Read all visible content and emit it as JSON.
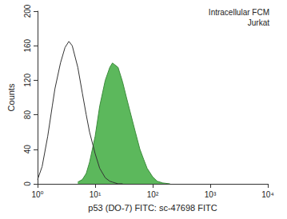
{
  "chart_data": {
    "type": "histogram_overlay",
    "annotations": [
      "Intracellular FCM",
      "Jurkat"
    ],
    "x_label": "p53 (DO-7) FITC: sc-47698 FITC",
    "y_label": "Counts",
    "log": "x",
    "grid": false,
    "x": [
      1,
      1.2,
      1.5,
      1.8,
      2,
      2.5,
      3,
      3.5,
      4,
      5,
      6,
      7,
      8,
      10,
      12,
      15,
      18,
      20,
      25,
      30,
      35,
      40,
      50,
      60,
      70,
      80,
      100,
      120,
      150,
      200
    ],
    "series": [
      {
        "color": "#333333",
        "type": "line",
        "line_style": "solid",
        "values": [
          5,
          20,
          55,
          90,
          110,
          140,
          158,
          165,
          160,
          135,
          105,
          80,
          60,
          35,
          18,
          7,
          3,
          2,
          0,
          0,
          null,
          null,
          null,
          null,
          null,
          null,
          null,
          null,
          null,
          null
        ]
      },
      {
        "color": "#5cb85c",
        "type": "area",
        "line_style": "solid",
        "values": [
          null,
          null,
          null,
          null,
          null,
          null,
          null,
          null,
          null,
          2,
          5,
          12,
          25,
          55,
          90,
          120,
          135,
          140,
          135,
          118,
          100,
          85,
          60,
          40,
          28,
          18,
          8,
          3,
          1,
          0
        ]
      }
    ],
    "xlim": [
      1,
      10000
    ],
    "xticks": [
      {
        "value": 1,
        "label": "10⁰"
      },
      {
        "value": 10,
        "label": "10¹"
      },
      {
        "value": 100,
        "label": "10²"
      },
      {
        "value": 1000,
        "label": "10³"
      },
      {
        "value": 10000,
        "label": "10⁴"
      }
    ],
    "ylim": [
      0,
      200
    ],
    "yticks": [
      0,
      40,
      80,
      120,
      160,
      200
    ]
  }
}
